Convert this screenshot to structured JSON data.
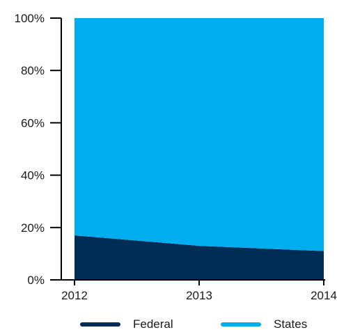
{
  "colors": {
    "federal": "#002d56",
    "states": "#00adef",
    "axis": "#000000"
  },
  "chart_data": {
    "type": "area",
    "stacked": true,
    "percent": true,
    "title": "",
    "xlabel": "",
    "ylabel": "",
    "x": [
      2012,
      2013,
      2014
    ],
    "x_tick_labels": [
      "2012",
      "2013",
      "2014"
    ],
    "ylim": [
      0,
      100
    ],
    "y_ticks": [
      0,
      20,
      40,
      60,
      80,
      100
    ],
    "y_tick_labels": [
      "0%",
      "20%",
      "40%",
      "60%",
      "80%",
      "100%"
    ],
    "grid": false,
    "legend_position": "bottom",
    "series": [
      {
        "name": "Federal",
        "values": [
          17,
          13,
          11
        ],
        "color": "#002d56"
      },
      {
        "name": "States",
        "values": [
          83,
          87,
          89
        ],
        "color": "#00adef"
      }
    ]
  }
}
